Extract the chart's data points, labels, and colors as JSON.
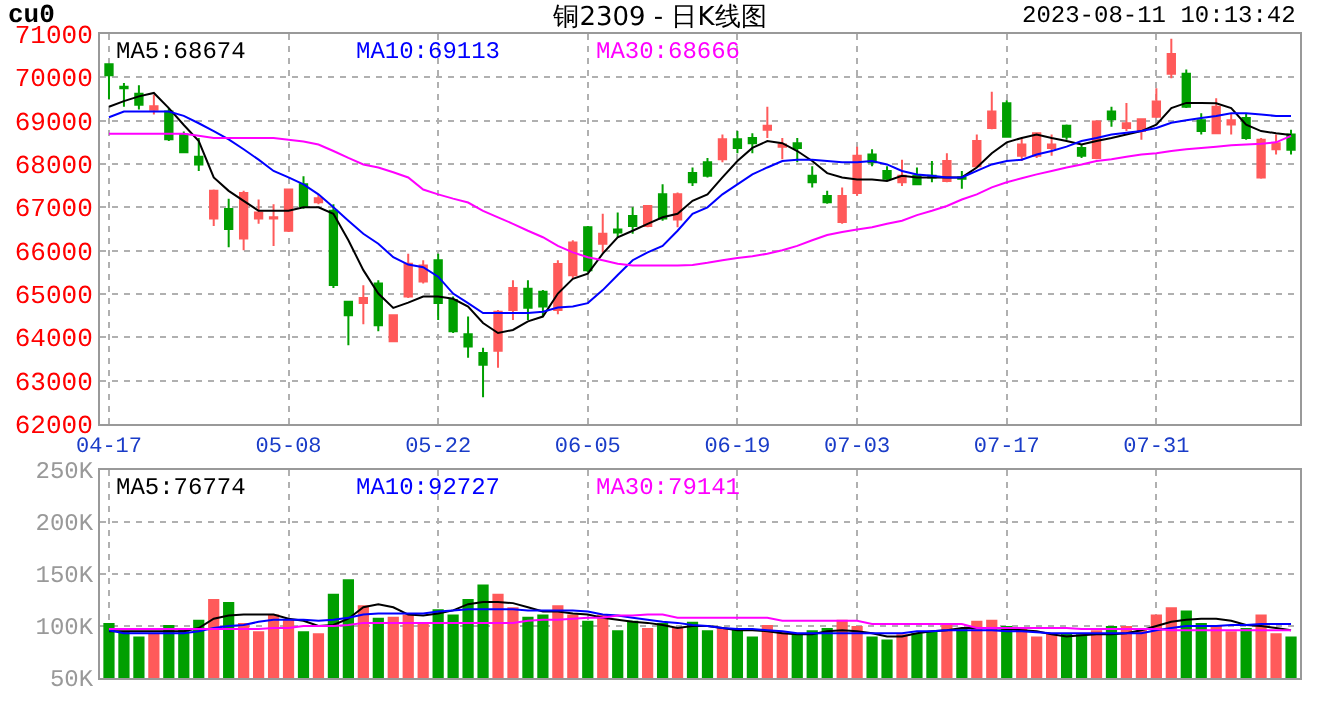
{
  "chart_data": [
    {
      "type": "candlestick",
      "title": "铜2309 - 日K线图",
      "annotations": [
        "cu0",
        "2023-08-11 10:13:42"
      ],
      "categories": [
        "04-17",
        null,
        null,
        null,
        null,
        null,
        null,
        null,
        null,
        null,
        null,
        null,
        "05-08",
        null,
        null,
        null,
        null,
        null,
        null,
        null,
        null,
        null,
        "05-22",
        null,
        null,
        null,
        null,
        null,
        null,
        null,
        null,
        null,
        "06-05",
        null,
        null,
        null,
        null,
        null,
        null,
        null,
        null,
        null,
        "06-19",
        null,
        null,
        null,
        null,
        null,
        null,
        null,
        "07-03",
        null,
        null,
        null,
        null,
        null,
        null,
        null,
        null,
        null,
        "07-17",
        null,
        null,
        null,
        null,
        null,
        null,
        null,
        null,
        null,
        "07-31",
        null,
        null,
        null,
        null,
        null,
        null,
        null,
        null,
        null
      ],
      "ohlc": [
        [
          70300,
          70300,
          69500,
          70050
        ],
        [
          69780,
          69870,
          69320,
          69750
        ],
        [
          69620,
          69820,
          69260,
          69370
        ],
        [
          69250,
          69600,
          69140,
          69330
        ],
        [
          69210,
          69290,
          68530,
          68570
        ],
        [
          68680,
          68750,
          68250,
          68270
        ],
        [
          68170,
          68600,
          67840,
          67990
        ],
        [
          66740,
          67410,
          66570,
          67380
        ],
        [
          66960,
          67200,
          66080,
          66500
        ],
        [
          66280,
          67380,
          66010,
          67330
        ],
        [
          66740,
          67180,
          66620,
          66880
        ],
        [
          66740,
          67070,
          66110,
          66770
        ],
        [
          66460,
          67430,
          66430,
          67410
        ],
        [
          67530,
          67720,
          66970,
          67030
        ],
        [
          67120,
          67300,
          67070,
          67210
        ],
        [
          66920,
          67070,
          65140,
          65210
        ],
        [
          64820,
          64820,
          63820,
          64510
        ],
        [
          64790,
          65200,
          64300,
          64910
        ],
        [
          65240,
          65320,
          64140,
          64280
        ],
        [
          63910,
          64510,
          63910,
          64510
        ],
        [
          64940,
          65930,
          64910,
          65700
        ],
        [
          65290,
          65780,
          65240,
          65660
        ],
        [
          65780,
          65930,
          64400,
          64790
        ],
        [
          64860,
          64940,
          64100,
          64140
        ],
        [
          64070,
          64480,
          63530,
          63790
        ],
        [
          63640,
          63760,
          62620,
          63370
        ],
        [
          63690,
          64630,
          63300,
          64590
        ],
        [
          64630,
          65320,
          64400,
          65140
        ],
        [
          65120,
          65320,
          64400,
          64680
        ],
        [
          65050,
          65090,
          64480,
          64710
        ],
        [
          64630,
          65780,
          64530,
          65690
        ],
        [
          65430,
          66240,
          65350,
          66190
        ],
        [
          66540,
          66570,
          65500,
          65550
        ],
        [
          66160,
          66850,
          65960,
          66390
        ],
        [
          66490,
          66880,
          66310,
          66420
        ],
        [
          66800,
          67000,
          66390,
          66570
        ],
        [
          66570,
          67030,
          66540,
          67030
        ],
        [
          67300,
          67530,
          66690,
          66740
        ],
        [
          66720,
          67340,
          66540,
          67300
        ],
        [
          67790,
          67920,
          67490,
          67580
        ],
        [
          68040,
          68140,
          67690,
          67730
        ],
        [
          68110,
          68680,
          68040,
          68570
        ],
        [
          68570,
          68760,
          68250,
          68370
        ],
        [
          68600,
          68710,
          68250,
          68480
        ],
        [
          68790,
          69320,
          68600,
          68880
        ],
        [
          68400,
          68600,
          68110,
          68450
        ],
        [
          68480,
          68600,
          68040,
          68370
        ],
        [
          67730,
          67950,
          67460,
          67580
        ],
        [
          67260,
          67380,
          67080,
          67120
        ],
        [
          66660,
          67460,
          66620,
          67260
        ],
        [
          67330,
          68400,
          67270,
          68190
        ],
        [
          68220,
          68340,
          67950,
          68040
        ],
        [
          67840,
          67950,
          67610,
          67660
        ],
        [
          67580,
          68100,
          67490,
          67730
        ],
        [
          67730,
          67920,
          67530,
          67530
        ],
        [
          67730,
          68070,
          67580,
          67690
        ],
        [
          67610,
          68250,
          67580,
          68070
        ],
        [
          67690,
          67840,
          67430,
          67660
        ],
        [
          67950,
          68680,
          67920,
          68530
        ],
        [
          68830,
          69670,
          68800,
          69210
        ],
        [
          69400,
          69470,
          68630,
          68630
        ],
        [
          68190,
          68600,
          68070,
          68450
        ],
        [
          68190,
          68710,
          68140,
          68710
        ],
        [
          68370,
          68680,
          68190,
          68450
        ],
        [
          68880,
          68910,
          68560,
          68630
        ],
        [
          68370,
          68450,
          68140,
          68190
        ],
        [
          68140,
          69010,
          68110,
          68980
        ],
        [
          69210,
          69320,
          68860,
          69030
        ],
        [
          68830,
          69410,
          68760,
          68940
        ],
        [
          68760,
          69030,
          68560,
          69030
        ],
        [
          69090,
          69750,
          69060,
          69440
        ],
        [
          70080,
          70890,
          69980,
          70540
        ],
        [
          70080,
          70180,
          69290,
          69320
        ],
        [
          69010,
          69170,
          68680,
          68760
        ],
        [
          68710,
          69520,
          68710,
          69320
        ],
        [
          68910,
          69170,
          68680,
          69010
        ],
        [
          69060,
          69170,
          68560,
          68600
        ],
        [
          67690,
          68600,
          67660,
          68560
        ],
        [
          68340,
          68680,
          68220,
          68480
        ],
        [
          68680,
          68790,
          68220,
          68330
        ]
      ],
      "colors": [
        "#009f00",
        "#009f00",
        "#009f00",
        "#ff5a5a",
        "#009f00",
        "#009f00",
        "#009f00",
        "#ff5a5a",
        "#009f00",
        "#ff5a5a",
        "#ff5a5a",
        "#ff5a5a",
        "#ff5a5a",
        "#009f00",
        "#ff5a5a",
        "#009f00",
        "#009f00",
        "#ff5a5a",
        "#009f00",
        "#ff5a5a",
        "#ff5a5a",
        "#ff5a5a",
        "#009f00",
        "#009f00",
        "#009f00",
        "#009f00",
        "#ff5a5a",
        "#ff5a5a",
        "#009f00",
        "#009f00",
        "#ff5a5a",
        "#ff5a5a",
        "#009f00",
        "#ff5a5a",
        "#009f00",
        "#009f00",
        "#ff5a5a",
        "#009f00",
        "#ff5a5a",
        "#009f00",
        "#009f00",
        "#ff5a5a",
        "#009f00",
        "#009f00",
        "#ff5a5a",
        "#ff5a5a",
        "#009f00",
        "#009f00",
        "#009f00",
        "#ff5a5a",
        "#ff5a5a",
        "#009f00",
        "#009f00",
        "#ff5a5a",
        "#009f00",
        "#009f00",
        "#ff5a5a",
        "#009f00",
        "#ff5a5a",
        "#ff5a5a",
        "#009f00",
        "#ff5a5a",
        "#ff5a5a",
        "#ff5a5a",
        "#009f00",
        "#009f00",
        "#ff5a5a",
        "#009f00",
        "#ff5a5a",
        "#ff5a5a",
        "#ff5a5a",
        "#ff5a5a",
        "#009f00",
        "#009f00",
        "#ff5a5a",
        "#ff5a5a",
        "#009f00",
        "#ff5a5a",
        "#ff5a5a",
        "#009f00"
      ],
      "series": [
        {
          "type": "line",
          "name": "MA5:68674",
          "color": "#000000",
          "values": [
            69320,
            69450,
            69560,
            69640,
            69290,
            68900,
            68530,
            67690,
            67380,
            67150,
            66920,
            66920,
            66920,
            67000,
            67000,
            66850,
            66240,
            65550,
            65010,
            64680,
            64800,
            64940,
            64940,
            64890,
            64710,
            64330,
            64100,
            64170,
            64370,
            64480,
            65010,
            65350,
            65470,
            65930,
            66310,
            66460,
            66620,
            66770,
            66850,
            67150,
            67300,
            67690,
            68070,
            68370,
            68530,
            68480,
            68300,
            68070,
            67790,
            67690,
            67640,
            67640,
            67610,
            67730,
            67690,
            67690,
            67690,
            67690,
            67920,
            68250,
            68500,
            68600,
            68680,
            68600,
            68530,
            68450,
            68530,
            68600,
            68680,
            68760,
            68910,
            69290,
            69410,
            69410,
            69400,
            69290,
            68910,
            68760,
            68710,
            68670
          ]
        },
        {
          "type": "line",
          "name": "MA10:69113",
          "color": "#0000ff",
          "values": [
            69080,
            69210,
            69210,
            69210,
            69210,
            69110,
            68940,
            68760,
            68570,
            68340,
            68100,
            67840,
            67690,
            67530,
            67300,
            67000,
            66690,
            66390,
            66160,
            65850,
            65680,
            65620,
            65400,
            65010,
            64790,
            64560,
            64560,
            64560,
            64560,
            64590,
            64690,
            64710,
            64790,
            65090,
            65440,
            65780,
            65960,
            66110,
            66460,
            66850,
            67000,
            67300,
            67530,
            67760,
            67920,
            68070,
            68100,
            68100,
            68070,
            68040,
            68040,
            68070,
            67990,
            67840,
            67760,
            67730,
            67690,
            67690,
            67840,
            67990,
            68070,
            68100,
            68220,
            68300,
            68400,
            68530,
            68600,
            68680,
            68720,
            68760,
            68830,
            68950,
            69010,
            69060,
            69110,
            69170,
            69170,
            69140,
            69110,
            69110
          ]
        },
        {
          "type": "line",
          "name": "MA30:68666",
          "color": "#ff00ff",
          "values": [
            68700,
            68700,
            68700,
            68700,
            68700,
            68700,
            68650,
            68600,
            68600,
            68600,
            68600,
            68600,
            68560,
            68520,
            68450,
            68300,
            68140,
            67990,
            67920,
            67810,
            67690,
            67410,
            67300,
            67200,
            67110,
            66920,
            66770,
            66620,
            66460,
            66310,
            66110,
            65960,
            65850,
            65780,
            65700,
            65660,
            65660,
            65660,
            65660,
            65670,
            65720,
            65780,
            65830,
            65870,
            65930,
            66010,
            66110,
            66240,
            66360,
            66430,
            66490,
            66540,
            66620,
            66690,
            66820,
            66920,
            67030,
            67180,
            67300,
            67460,
            67580,
            67670,
            67760,
            67840,
            67920,
            67990,
            68070,
            68110,
            68170,
            68220,
            68250,
            68300,
            68340,
            68370,
            68400,
            68430,
            68450,
            68470,
            68500,
            68650
          ]
        }
      ],
      "ylim": [
        62000,
        71000
      ],
      "yticks": [
        62000,
        63000,
        64000,
        65000,
        66000,
        67000,
        68000,
        69000,
        70000,
        71000
      ],
      "grid": true,
      "legend": "top"
    },
    {
      "type": "bar",
      "tick_labels": "y",
      "categories": [
        null,
        null,
        null,
        null,
        null,
        null,
        null,
        null,
        null,
        null,
        null,
        null,
        null,
        null,
        null,
        null,
        null,
        null,
        null,
        null,
        null,
        null,
        null,
        null,
        null,
        null,
        null,
        null,
        null,
        null,
        null,
        null,
        null,
        null,
        null,
        null,
        null,
        null,
        null,
        null,
        null,
        null,
        null,
        null,
        null,
        null,
        null,
        null,
        null,
        null,
        null,
        null,
        null,
        null,
        null,
        null,
        null,
        null,
        null,
        null,
        null,
        null,
        null,
        null,
        null,
        null,
        null,
        null,
        null,
        null,
        null,
        null,
        null,
        null,
        null,
        null,
        null,
        null,
        null,
        null
      ],
      "series": [
        {
          "type": "bar",
          "colors": [
            "#009f00",
            "#009f00",
            "#009f00",
            "#ff5a5a",
            "#009f00",
            "#009f00",
            "#009f00",
            "#ff5a5a",
            "#009f00",
            "#ff5a5a",
            "#ff5a5a",
            "#ff5a5a",
            "#ff5a5a",
            "#009f00",
            "#ff5a5a",
            "#009f00",
            "#009f00",
            "#ff5a5a",
            "#009f00",
            "#ff5a5a",
            "#ff5a5a",
            "#ff5a5a",
            "#009f00",
            "#009f00",
            "#009f00",
            "#009f00",
            "#ff5a5a",
            "#ff5a5a",
            "#009f00",
            "#009f00",
            "#ff5a5a",
            "#ff5a5a",
            "#009f00",
            "#ff5a5a",
            "#009f00",
            "#009f00",
            "#ff5a5a",
            "#009f00",
            "#ff5a5a",
            "#009f00",
            "#009f00",
            "#ff5a5a",
            "#009f00",
            "#009f00",
            "#ff5a5a",
            "#ff5a5a",
            "#009f00",
            "#009f00",
            "#009f00",
            "#ff5a5a",
            "#ff5a5a",
            "#009f00",
            "#009f00",
            "#ff5a5a",
            "#009f00",
            "#009f00",
            "#ff5a5a",
            "#009f00",
            "#ff5a5a",
            "#ff5a5a",
            "#009f00",
            "#ff5a5a",
            "#ff5a5a",
            "#ff5a5a",
            "#009f00",
            "#009f00",
            "#ff5a5a",
            "#009f00",
            "#ff5a5a",
            "#ff5a5a",
            "#ff5a5a",
            "#ff5a5a",
            "#009f00",
            "#009f00",
            "#ff5a5a",
            "#ff5a5a",
            "#009f00",
            "#ff5a5a",
            "#ff5a5a",
            "#009f00"
          ],
          "values": [
            103000,
            95000,
            90000,
            93000,
            101000,
            97000,
            106000,
            126000,
            123000,
            103000,
            95000,
            111000,
            106000,
            95000,
            93000,
            131000,
            145000,
            120000,
            108000,
            109000,
            111000,
            103000,
            116000,
            111000,
            126000,
            140000,
            131000,
            118000,
            109000,
            111000,
            120000,
            111000,
            105000,
            111000,
            96000,
            105000,
            98000,
            103000,
            98000,
            104000,
            96000,
            98000,
            97000,
            90000,
            101000,
            95000,
            92000,
            96000,
            98000,
            106000,
            100000,
            90000,
            87000,
            92000,
            93000,
            95000,
            101000,
            98000,
            105000,
            106000,
            100000,
            98000,
            90000,
            93000,
            93000,
            92000,
            96000,
            100000,
            100000,
            98000,
            111000,
            118000,
            115000,
            103000,
            100000,
            95000,
            98000,
            111000,
            93000,
            90000
          ]
        },
        {
          "type": "line",
          "name": "MA5:76774",
          "color": "#000000",
          "values": [
            95000,
            95000,
            95000,
            95000,
            95000,
            95000,
            98000,
            107000,
            110000,
            111000,
            111000,
            111000,
            107000,
            105000,
            100000,
            101000,
            107000,
            118000,
            121000,
            118000,
            111000,
            110000,
            112000,
            115000,
            121000,
            123000,
            123000,
            122000,
            118000,
            114000,
            114000,
            112000,
            111000,
            108000,
            106000,
            104000,
            103000,
            101000,
            98000,
            100000,
            100000,
            98000,
            96000,
            96000,
            95000,
            93000,
            92000,
            92000,
            95000,
            96000,
            95000,
            93000,
            90000,
            90000,
            93000,
            95000,
            96000,
            98000,
            98000,
            98000,
            97000,
            96000,
            95000,
            92000,
            90000,
            91000,
            92000,
            92000,
            93000,
            96000,
            100000,
            104000,
            106000,
            107000,
            107000,
            105000,
            101000,
            100000,
            98000,
            96000
          ]
        },
        {
          "type": "line",
          "name": "MA10:92727",
          "color": "#0000ff",
          "values": [
            96000,
            93000,
            93000,
            93000,
            93000,
            93000,
            95000,
            98000,
            100000,
            101000,
            104000,
            106000,
            106000,
            106000,
            105000,
            106000,
            108000,
            111000,
            112000,
            112000,
            112000,
            112000,
            114000,
            115000,
            116000,
            116000,
            116000,
            116000,
            115000,
            115000,
            115000,
            115000,
            114000,
            111000,
            110000,
            108000,
            106000,
            104000,
            103000,
            101000,
            100000,
            98000,
            97000,
            97000,
            96000,
            95000,
            93000,
            93000,
            93000,
            93000,
            93000,
            93000,
            93000,
            93000,
            95000,
            95000,
            96000,
            96000,
            96000,
            96000,
            95000,
            95000,
            94000,
            93000,
            93000,
            93000,
            93000,
            93000,
            93000,
            93000,
            96000,
            98000,
            100000,
            100000,
            100000,
            101000,
            101000,
            102000,
            102000,
            102000
          ]
        },
        {
          "type": "line",
          "name": "MA30:79141",
          "color": "#ff00ff",
          "values": [
            97000,
            97000,
            97000,
            97000,
            97000,
            97000,
            97000,
            97000,
            97000,
            97000,
            97000,
            98000,
            98000,
            100000,
            100000,
            100000,
            101000,
            103000,
            103000,
            103000,
            103000,
            103000,
            103000,
            103000,
            103000,
            103000,
            103000,
            103000,
            105000,
            106000,
            106000,
            107000,
            108000,
            108000,
            110000,
            110000,
            111000,
            111000,
            108000,
            108000,
            108000,
            108000,
            108000,
            108000,
            108000,
            105000,
            105000,
            105000,
            105000,
            105000,
            105000,
            102000,
            102000,
            102000,
            102000,
            102000,
            102000,
            102000,
            98000,
            98000,
            98000,
            98000,
            98000,
            98000,
            98000,
            97000,
            97000,
            97000,
            97000,
            97000,
            97000,
            96000,
            96000,
            96000,
            96000,
            96000,
            96000,
            96000,
            96000,
            96000
          ]
        }
      ],
      "ylim": [
        50000,
        250000
      ],
      "yticks": [
        {
          "value": 50000,
          "label": "50K"
        },
        {
          "value": 100000,
          "label": "100K"
        },
        {
          "value": 150000,
          "label": "150K"
        },
        {
          "value": 200000,
          "label": "200K"
        },
        {
          "value": 250000,
          "label": "250K"
        }
      ],
      "grid": true,
      "legend": "top"
    }
  ]
}
